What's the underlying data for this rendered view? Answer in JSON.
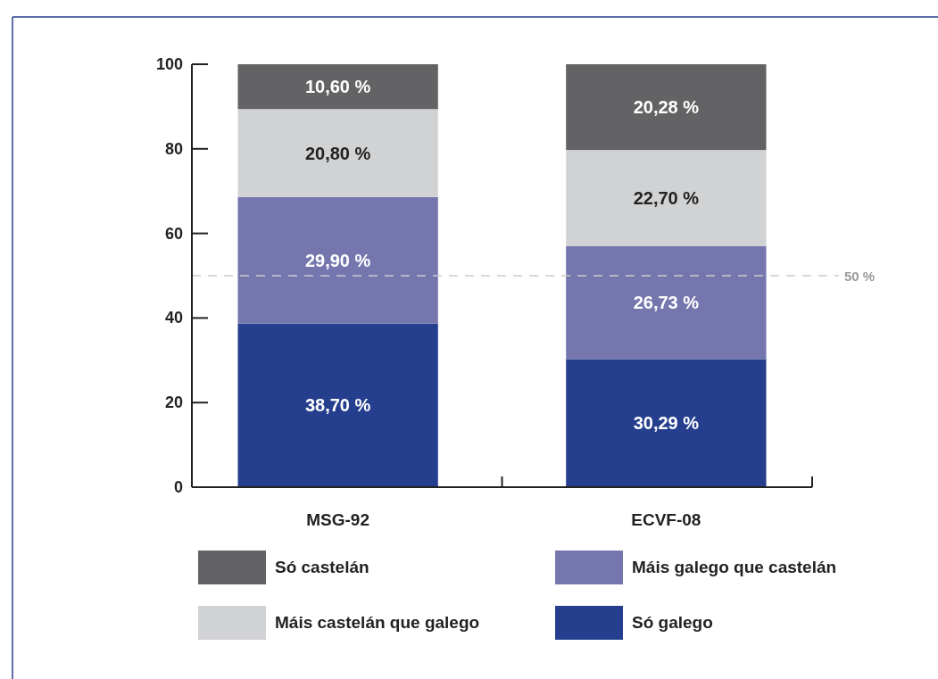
{
  "chart_data": {
    "type": "bar",
    "stacked": true,
    "categories": [
      "MSG-92",
      "ECVF-08"
    ],
    "series": [
      {
        "name": "Só galego",
        "color": "#253f8e",
        "values": [
          38.7,
          30.29
        ],
        "value_labels": [
          "38,70 %",
          "30,29 %"
        ]
      },
      {
        "name": "Máis galego que castelán",
        "color": "#7576ae",
        "values": [
          29.9,
          26.73
        ],
        "value_labels": [
          "29,90 %",
          "26,73 %"
        ]
      },
      {
        "name": "Máis castelán que galego",
        "color": "#d1d2d4",
        "values": [
          20.8,
          22.7
        ],
        "value_labels": [
          "20,80 %",
          "22,70 %"
        ]
      },
      {
        "name": "Só castelán",
        "color": "#636365",
        "values": [
          10.6,
          20.28
        ],
        "value_labels": [
          "10,60 %",
          "20,28 %"
        ]
      }
    ],
    "ylim": [
      0,
      100
    ],
    "yticks": [
      0,
      20,
      40,
      60,
      80,
      100
    ],
    "grid": false,
    "legend": "bottom",
    "ref_lines": [
      {
        "axis": "y",
        "value": 50,
        "label": "50 %",
        "color": "#cccccc",
        "line_style": "dashed"
      }
    ]
  }
}
